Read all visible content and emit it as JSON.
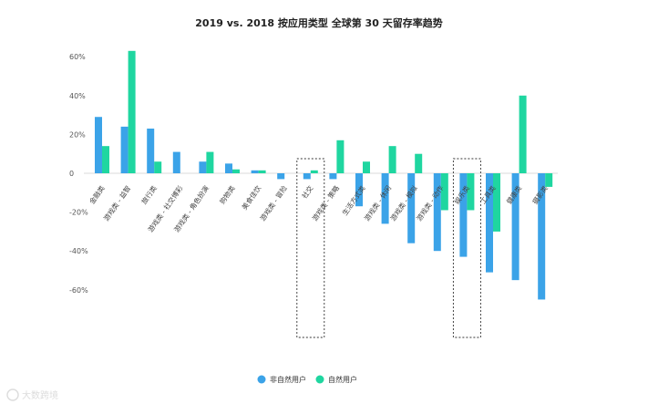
{
  "chart_data": {
    "type": "bar",
    "title": "2019 vs. 2018 按应用类型 全球第 30 天留存率趋势",
    "ylim": [
      -70,
      70
    ],
    "yticks": [
      60,
      40,
      20,
      0,
      -20,
      -40,
      -60
    ],
    "ytick_labels": [
      "60%",
      "40%",
      "20%",
      "0",
      "-20%",
      "-40%",
      "-60%"
    ],
    "grid": false,
    "legend_position": "bottom-center",
    "categories": [
      "金融类",
      "游戏类 - 益智",
      "旅行类",
      "游戏类 - 社交博彩",
      "游戏类 - 角色扮演",
      "购物类",
      "美食佳饮",
      "游戏类 - 冒险",
      "社交",
      "游戏类 - 策略",
      "生活方式类",
      "游戏类 - 休闲",
      "游戏类 - 模拟",
      "游戏类 - 动作",
      "娱乐类",
      "工具类",
      "健康类",
      "摄影类"
    ],
    "highlighted_categories": [
      "社交",
      "娱乐类"
    ],
    "series": [
      {
        "name": "非自然用户",
        "color": "#3ba3e8",
        "values": [
          29,
          24,
          23,
          11,
          6,
          5,
          1.5,
          -3,
          -3,
          -3,
          -17,
          -26,
          -36,
          -40,
          -43,
          -51,
          -55,
          -65
        ]
      },
      {
        "name": "自然用户",
        "color": "#1fd6a0",
        "values": [
          14,
          63,
          6,
          null,
          11,
          2,
          1.5,
          null,
          1.5,
          17,
          6,
          14,
          10,
          -19,
          -19,
          -30,
          40,
          -7
        ]
      }
    ]
  },
  "watermark": "大数跨境"
}
